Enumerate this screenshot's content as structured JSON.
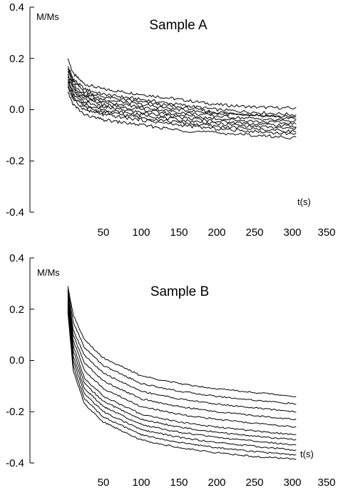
{
  "chart_data": [
    {
      "type": "line",
      "title": "Sample A",
      "ylabel": "M/Ms",
      "xlabel": "t(s)",
      "xlim": [
        -30,
        350
      ],
      "ylim": [
        -0.4,
        0.4
      ],
      "x_ticks": [
        50,
        100,
        150,
        200,
        250,
        300,
        350
      ],
      "x_tick_labels": [
        "50",
        "100",
        "150",
        "200",
        "250",
        "300",
        "350"
      ],
      "y_ticks": [
        0.4,
        0.2,
        0.0,
        -0.2,
        -0.4
      ],
      "y_tick_labels": [
        "0.4",
        "0.2",
        "0.0",
        "-0.2",
        "-0.4"
      ],
      "x": [
        3,
        10,
        25,
        50,
        100,
        150,
        200,
        250,
        305
      ],
      "series": [
        {
          "values": [
            0.2,
            0.14,
            0.1,
            0.08,
            0.06,
            0.04,
            0.02,
            0.01,
            0.005
          ]
        },
        {
          "values": [
            0.17,
            0.12,
            0.08,
            0.06,
            0.04,
            0.02,
            0.0,
            -0.01,
            -0.02
          ]
        },
        {
          "values": [
            0.16,
            0.11,
            0.07,
            0.05,
            0.03,
            0.01,
            -0.01,
            -0.02,
            -0.03
          ]
        },
        {
          "values": [
            0.15,
            0.1,
            0.06,
            0.04,
            0.02,
            0.0,
            -0.015,
            -0.025,
            -0.035
          ]
        },
        {
          "values": [
            0.14,
            0.09,
            0.05,
            0.03,
            0.01,
            -0.01,
            -0.025,
            -0.035,
            -0.045
          ]
        },
        {
          "values": [
            0.13,
            0.08,
            0.04,
            0.02,
            0.0,
            -0.02,
            -0.035,
            -0.045,
            -0.055
          ]
        },
        {
          "values": [
            0.12,
            0.07,
            0.03,
            0.01,
            -0.01,
            -0.03,
            -0.045,
            -0.055,
            -0.065
          ]
        },
        {
          "values": [
            0.11,
            0.06,
            0.02,
            0.0,
            -0.02,
            -0.04,
            -0.055,
            -0.065,
            -0.075
          ]
        },
        {
          "values": [
            0.1,
            0.05,
            0.01,
            -0.01,
            -0.03,
            -0.05,
            -0.065,
            -0.075,
            -0.085
          ]
        },
        {
          "values": [
            0.09,
            0.04,
            0.0,
            -0.02,
            -0.04,
            -0.06,
            -0.075,
            -0.085,
            -0.095
          ]
        },
        {
          "values": [
            0.07,
            0.02,
            -0.02,
            -0.04,
            -0.06,
            -0.08,
            -0.09,
            -0.1,
            -0.11
          ]
        }
      ]
    },
    {
      "type": "line",
      "title": "Sample B",
      "ylabel": "M/Ms",
      "xlabel": "t(s)",
      "xlim": [
        -30,
        350
      ],
      "ylim": [
        -0.4,
        0.4
      ],
      "x_ticks": [
        50,
        100,
        150,
        200,
        250,
        300,
        350
      ],
      "x_tick_labels": [
        "50",
        "100",
        "150",
        "200",
        "250",
        "300",
        "350"
      ],
      "y_ticks": [
        0.4,
        0.2,
        0.0,
        -0.2,
        -0.4
      ],
      "y_tick_labels": [
        "0.4",
        "0.2",
        "0.0",
        "-0.2",
        "-0.4"
      ],
      "x": [
        3,
        10,
        25,
        50,
        100,
        150,
        200,
        250,
        305
      ],
      "series": [
        {
          "values": [
            0.29,
            0.18,
            0.08,
            0.01,
            -0.06,
            -0.09,
            -0.11,
            -0.125,
            -0.14
          ]
        },
        {
          "values": [
            0.28,
            0.15,
            0.05,
            -0.02,
            -0.09,
            -0.12,
            -0.14,
            -0.155,
            -0.17
          ]
        },
        {
          "values": [
            0.27,
            0.12,
            0.02,
            -0.05,
            -0.12,
            -0.15,
            -0.17,
            -0.185,
            -0.2
          ]
        },
        {
          "values": [
            0.26,
            0.1,
            -0.01,
            -0.08,
            -0.15,
            -0.18,
            -0.2,
            -0.215,
            -0.23
          ]
        },
        {
          "values": [
            0.25,
            0.08,
            -0.04,
            -0.11,
            -0.18,
            -0.21,
            -0.23,
            -0.245,
            -0.26
          ]
        },
        {
          "values": [
            0.24,
            0.06,
            -0.07,
            -0.14,
            -0.21,
            -0.24,
            -0.26,
            -0.275,
            -0.29
          ]
        },
        {
          "values": [
            0.23,
            0.04,
            -0.09,
            -0.16,
            -0.23,
            -0.26,
            -0.28,
            -0.295,
            -0.31
          ]
        },
        {
          "values": [
            0.22,
            0.02,
            -0.11,
            -0.18,
            -0.25,
            -0.28,
            -0.3,
            -0.315,
            -0.33
          ]
        },
        {
          "values": [
            0.21,
            0.0,
            -0.13,
            -0.2,
            -0.27,
            -0.3,
            -0.32,
            -0.335,
            -0.35
          ]
        },
        {
          "values": [
            0.2,
            -0.02,
            -0.15,
            -0.22,
            -0.29,
            -0.32,
            -0.34,
            -0.355,
            -0.37
          ]
        },
        {
          "values": [
            0.19,
            -0.04,
            -0.17,
            -0.24,
            -0.31,
            -0.34,
            -0.36,
            -0.375,
            -0.385
          ]
        }
      ]
    }
  ]
}
